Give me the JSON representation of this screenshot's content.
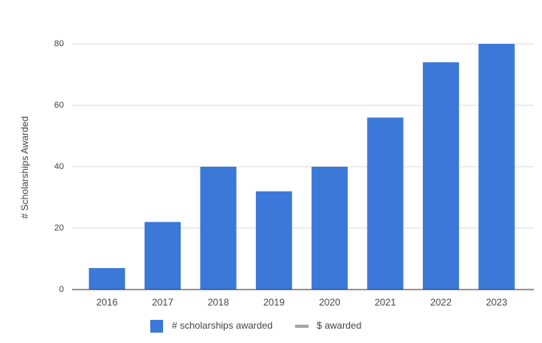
{
  "chart_data": {
    "type": "bar",
    "y_label": "# Scholarships Awarded",
    "categories": [
      "2016",
      "2017",
      "2018",
      "2019",
      "2020",
      "2021",
      "2022",
      "2023"
    ],
    "series": [
      {
        "name": "# scholarships awarded",
        "color": "#3c78d8",
        "type": "bar",
        "values": [
          7,
          22,
          40,
          32,
          40,
          56,
          74,
          80
        ]
      },
      {
        "name": "$ awarded",
        "color": "#a6a6a6",
        "type": "line",
        "values": [
          null,
          null,
          null,
          null,
          null,
          null,
          null,
          null
        ]
      }
    ],
    "ylim": [
      0,
      80
    ],
    "yticks": [
      0,
      20,
      40,
      60,
      80
    ],
    "grid": true,
    "legend": "bottom"
  }
}
